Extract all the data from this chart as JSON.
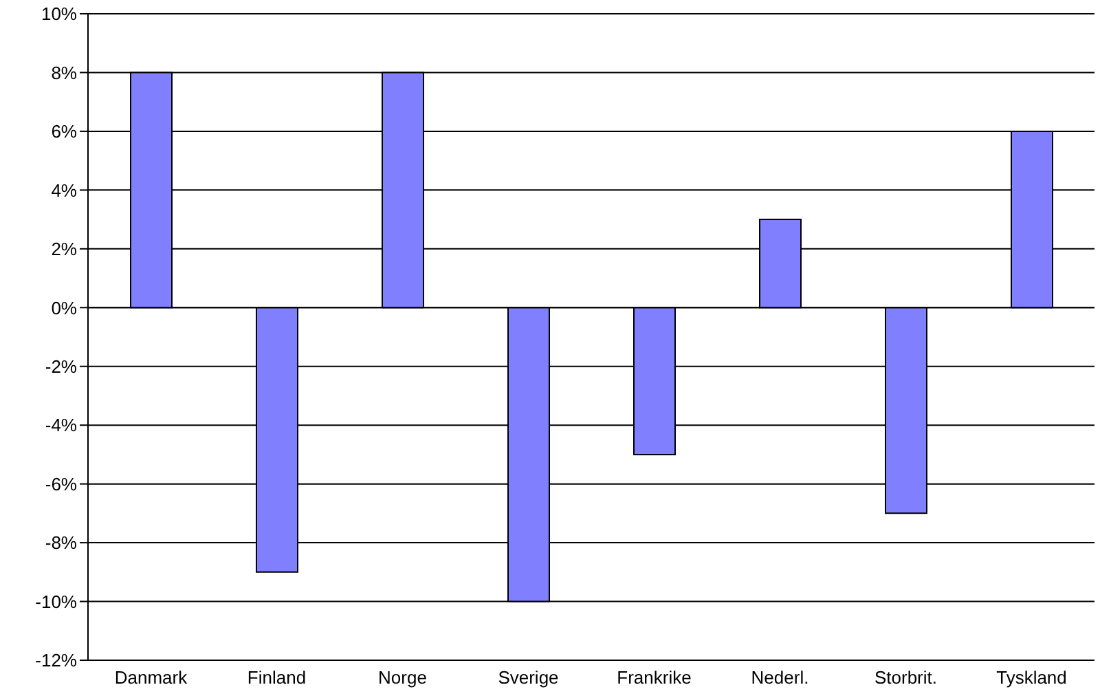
{
  "chart_data": {
    "type": "bar",
    "categories": [
      "Danmark",
      "Finland",
      "Norge",
      "Sverige",
      "Frankrike",
      "Nederl.",
      "Storbrit.",
      "Tyskland"
    ],
    "values": [
      8,
      -9,
      8,
      -10,
      -5,
      3,
      -7,
      6
    ],
    "color": "#8080ff",
    "ylim": [
      -12,
      10
    ],
    "yticks": [
      {
        "value": -12,
        "label": "-12%"
      },
      {
        "value": -10,
        "label": "-10%"
      },
      {
        "value": -8,
        "label": "-8%"
      },
      {
        "value": -6,
        "label": "-6%"
      },
      {
        "value": -4,
        "label": "-4%"
      },
      {
        "value": -2,
        "label": "-2%"
      },
      {
        "value": 0,
        "label": "0%"
      },
      {
        "value": 2,
        "label": "2%"
      },
      {
        "value": 4,
        "label": "4%"
      },
      {
        "value": 6,
        "label": "6%"
      },
      {
        "value": 8,
        "label": "8%"
      },
      {
        "value": 10,
        "label": "10%"
      }
    ],
    "grid": "y"
  }
}
